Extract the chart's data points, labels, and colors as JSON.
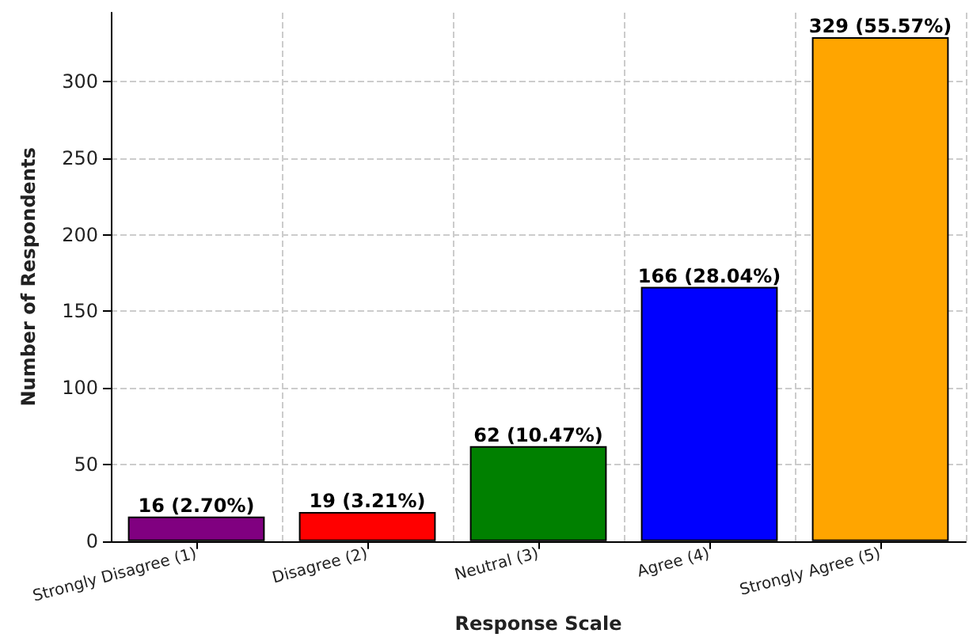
{
  "chart_data": {
    "type": "bar",
    "xlabel": "Response Scale",
    "ylabel": "Number of Respondents",
    "categories": [
      "Strongly Disagree (1)",
      "Disagree (2)",
      "Neutral (3)",
      "Agree (4)",
      "Strongly Agree (5)"
    ],
    "values": [
      16,
      19,
      62,
      166,
      329
    ],
    "colors": [
      "#800080",
      "#ff0000",
      "#008000",
      "#0000ff",
      "#ffa500"
    ],
    "value_labels": [
      "16 (2.70%)",
      "19 (3.21%)",
      "62 (10.47%)",
      "166 (28.04%)",
      "329 (55.57%)"
    ],
    "ylim": [
      0,
      345
    ],
    "yticks": [
      0,
      50,
      100,
      150,
      200,
      250,
      300
    ],
    "grid": true
  }
}
